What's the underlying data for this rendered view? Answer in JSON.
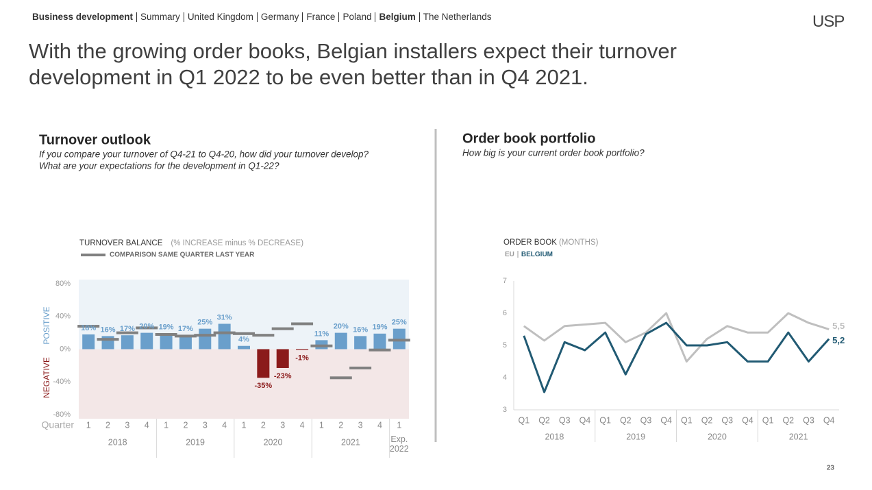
{
  "nav": [
    {
      "label": "Business development",
      "bold": true
    },
    {
      "label": "Summary"
    },
    {
      "label": "United Kingdom"
    },
    {
      "label": "Germany"
    },
    {
      "label": "France"
    },
    {
      "label": "Poland"
    },
    {
      "label": "Belgium",
      "bold": true
    },
    {
      "label": "The Netherlands"
    }
  ],
  "logo": "USP",
  "title": "With the growing order books, Belgian installers expect their turnover development in Q1 2022 to be even better than in Q4 2021.",
  "page_number": "23",
  "chart_data": [
    {
      "type": "bar",
      "title": "Turnover outlook",
      "subtitle": [
        "If you compare your turnover of Q4-21 to Q4-20, how did your turnover develop?",
        "What are your expectations for the development in Q1-22?"
      ],
      "ylabel": "TURNOVER BALANCE",
      "ylabel_note": "(% INCREASE minus % DECREASE)",
      "positive_label": "POSITIVE",
      "negative_label": "NEGATIVE",
      "xlabel": "Quarter",
      "categories": [
        "1",
        "2",
        "3",
        "4",
        "1",
        "2",
        "3",
        "4",
        "1",
        "2",
        "3",
        "4",
        "1",
        "2",
        "3",
        "4",
        "1"
      ],
      "groups": [
        "2018",
        "2019",
        "2020",
        "2021",
        "Exp. 2022"
      ],
      "values": [
        18,
        16,
        17,
        20,
        19,
        17,
        25,
        31,
        4,
        -35,
        -23,
        -1,
        11,
        20,
        16,
        19,
        25
      ],
      "value_labels": [
        "18%",
        "16%",
        "17%",
        "20%",
        "19%",
        "17%",
        "25%",
        "31%",
        "4%",
        "-35%",
        "-23%",
        "-1%",
        "11%",
        "20%",
        "16%",
        "19%",
        "25%"
      ],
      "color": "#6a9fcb",
      "negative_color": "#8b1a1a",
      "comparison": {
        "name": "COMPARISON SAME QUARTER LAST YEAR",
        "color": "#808080",
        "values": [
          28,
          12,
          20,
          26,
          18,
          16,
          17,
          20,
          19,
          17,
          25,
          31,
          4,
          -35,
          -23,
          -1,
          11
        ]
      },
      "ylim": [
        -85,
        85
      ],
      "yticks": [
        {
          "value": 80,
          "label": "80%"
        },
        {
          "value": 40,
          "label": "40%"
        },
        {
          "value": 0,
          "label": "0%"
        },
        {
          "value": -40,
          "label": "-40%"
        },
        {
          "value": -80,
          "label": "-80%"
        }
      ],
      "positive_bg": "#edf3f8",
      "negative_bg": "#f3e7e7"
    },
    {
      "type": "line",
      "title": "Order book portfolio",
      "subtitle": [
        "How big is your current order book portfolio?"
      ],
      "ylabel": "ORDER BOOK",
      "ylabel_note": "(MONTHS)",
      "categories": [
        "Q1",
        "Q2",
        "Q3",
        "Q4",
        "Q1",
        "Q2",
        "Q3",
        "Q4",
        "Q1",
        "Q2",
        "Q3",
        "Q4",
        "Q1",
        "Q2",
        "Q3",
        "Q4"
      ],
      "groups": [
        "2018",
        "2019",
        "2020",
        "2021"
      ],
      "series": [
        {
          "name": "EU",
          "color": "#bfbfbf",
          "values": [
            5.6,
            5.15,
            5.6,
            5.65,
            5.7,
            5.1,
            5.4,
            6.0,
            4.5,
            5.2,
            5.6,
            5.4,
            5.4,
            6.0,
            5.7,
            5.5
          ],
          "end_label": "5,5"
        },
        {
          "name": "BELGIUM",
          "color": "#215a73",
          "values": [
            5.3,
            3.55,
            5.1,
            4.85,
            5.4,
            4.1,
            5.35,
            5.7,
            5.0,
            5.0,
            5.1,
            4.5,
            4.5,
            5.4,
            4.5,
            5.2
          ],
          "end_label": "5,2"
        }
      ],
      "ylim": [
        3,
        7
      ],
      "yticks": [
        3,
        4,
        5,
        6,
        7
      ]
    }
  ]
}
